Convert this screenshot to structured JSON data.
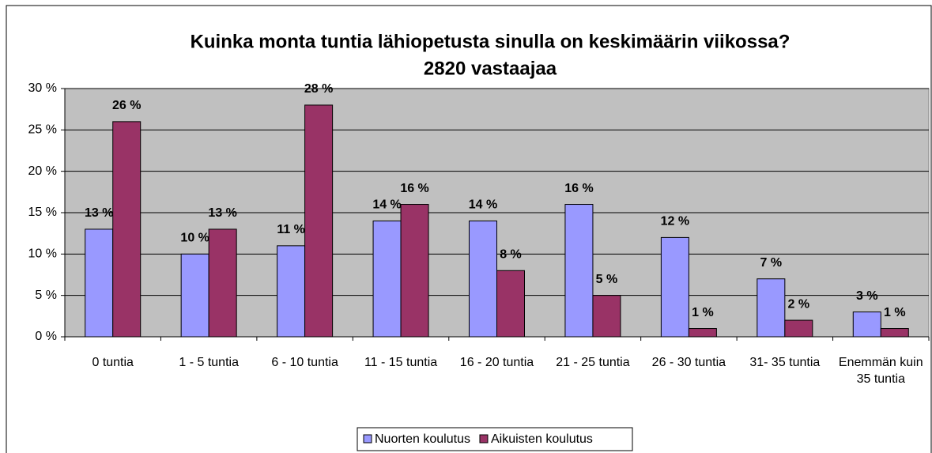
{
  "chart_data": {
    "type": "bar",
    "title": "Kuinka monta tuntia lähiopetusta sinulla on keskimäärin viikossa?",
    "subtitle": "2820 vastaajaa",
    "categories": [
      "0 tuntia",
      "1 - 5 tuntia",
      "6 - 10 tuntia",
      "11 - 15 tuntia",
      "16 - 20 tuntia",
      "21 - 25 tuntia",
      "26 - 30 tuntia",
      "31- 35 tuntia",
      "Enemmän kuin 35 tuntia"
    ],
    "series": [
      {
        "name": "Nuorten koulutus",
        "color": "#9999ff",
        "values": [
          13,
          10,
          11,
          14,
          14,
          16,
          12,
          7,
          3
        ],
        "value_labels": [
          "13 %",
          "10 %",
          "11 %",
          "14 %",
          "14 %",
          "16 %",
          "12 %",
          "7 %",
          "3 %"
        ]
      },
      {
        "name": "Aikuisten koulutus",
        "color": "#993366",
        "values": [
          26,
          13,
          28,
          16,
          8,
          5,
          1,
          2,
          1
        ],
        "value_labels": [
          "26 %",
          "13 %",
          "28 %",
          "16 %",
          "8 %",
          "5 %",
          "1 %",
          "2 %",
          "1 %"
        ]
      }
    ],
    "ylim": [
      0,
      30
    ],
    "yticks": [
      {
        "value": 0,
        "label": "0 %"
      },
      {
        "value": 5,
        "label": "5 %"
      },
      {
        "value": 10,
        "label": "10 %"
      },
      {
        "value": 15,
        "label": "15 %"
      },
      {
        "value": 20,
        "label": "20 %"
      },
      {
        "value": 25,
        "label": "25 %"
      },
      {
        "value": 30,
        "label": "30 %"
      }
    ],
    "grid": true,
    "legend": "bottom"
  }
}
